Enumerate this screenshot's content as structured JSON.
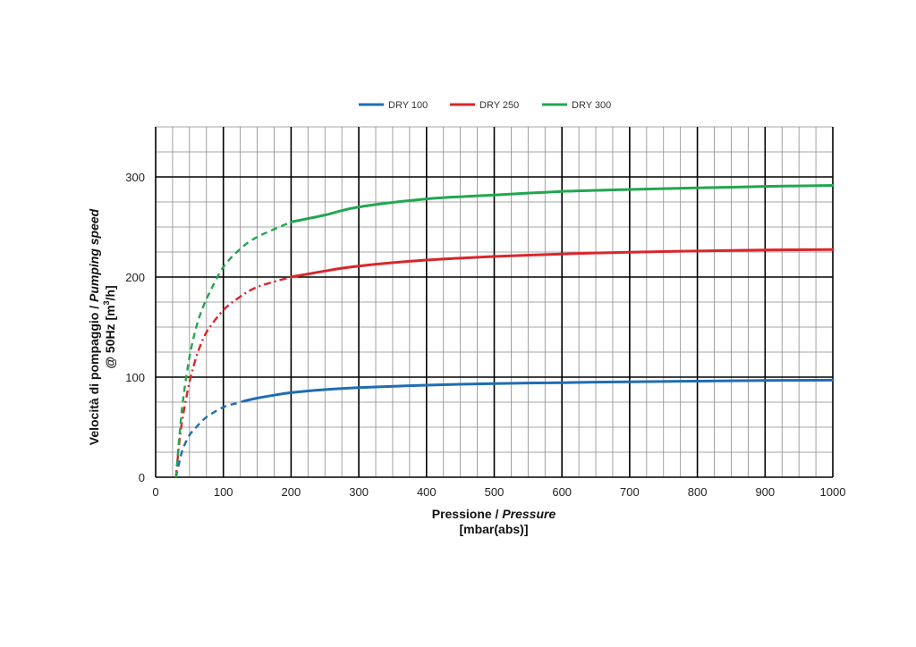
{
  "colors": {
    "dry100": "#1f6db3",
    "dry250": "#d9262b",
    "dry300": "#22a650",
    "grid_minor": "#8a8a8a",
    "grid_major": "#000000"
  },
  "chart_data": {
    "type": "line",
    "legend_placement": "top-center",
    "grid": true,
    "xlim": [
      0,
      1000
    ],
    "ylim": [
      0,
      350
    ],
    "x_major_ticks": [
      0,
      100,
      200,
      300,
      400,
      500,
      600,
      700,
      800,
      900,
      1000
    ],
    "y_major_ticks": [
      0,
      100,
      200,
      300
    ],
    "x_minor_step": 25,
    "y_minor_step": 25,
    "xlabel_main": "Pressione / ",
    "xlabel_italic": "Pressure",
    "xlabel_unit": "[mbar(abs)]",
    "ylabel_line1_main": "Velocità di pompaggio / ",
    "ylabel_line1_italic": "Pumping speed",
    "ylabel_line2_main": "@ 50Hz [m",
    "ylabel_line2_sup": "3",
    "ylabel_line2_end": "/h]",
    "series": [
      {
        "name": "DRY 100",
        "color_key": "dry100",
        "dashed": {
          "style": "dash",
          "points": [
            [
              30,
              0
            ],
            [
              35,
              15
            ],
            [
              40,
              28
            ],
            [
              50,
              42
            ],
            [
              60,
              50
            ],
            [
              75,
              60
            ],
            [
              100,
              70
            ],
            [
              120,
              74
            ],
            [
              130,
              76
            ]
          ]
        },
        "solid": [
          [
            130,
            76
          ],
          [
            150,
            79
          ],
          [
            175,
            82
          ],
          [
            200,
            84.5
          ],
          [
            250,
            87.5
          ],
          [
            300,
            89.5
          ],
          [
            400,
            92
          ],
          [
            500,
            93.5
          ],
          [
            600,
            94.5
          ],
          [
            700,
            95.3
          ],
          [
            800,
            96
          ],
          [
            900,
            96.6
          ],
          [
            1000,
            97
          ]
        ]
      },
      {
        "name": "DRY 250",
        "color_key": "dry250",
        "dashed": {
          "style": "dashdot",
          "points": [
            [
              30,
              0
            ],
            [
              35,
              35
            ],
            [
              40,
              60
            ],
            [
              50,
              95
            ],
            [
              60,
              120
            ],
            [
              70,
              138
            ],
            [
              80,
              150
            ],
            [
              100,
              167
            ],
            [
              120,
              178
            ],
            [
              150,
              190
            ],
            [
              200,
              200
            ]
          ]
        },
        "solid": [
          [
            200,
            200
          ],
          [
            250,
            206
          ],
          [
            300,
            211
          ],
          [
            400,
            217
          ],
          [
            500,
            220.5
          ],
          [
            600,
            223
          ],
          [
            700,
            224.8
          ],
          [
            800,
            226
          ],
          [
            900,
            227
          ],
          [
            1000,
            227.5
          ]
        ]
      },
      {
        "name": "DRY 300",
        "color_key": "dry300",
        "dashed": {
          "style": "dash",
          "points": [
            [
              30,
              0
            ],
            [
              35,
              40
            ],
            [
              40,
              75
            ],
            [
              50,
              120
            ],
            [
              60,
              150
            ],
            [
              70,
              170
            ],
            [
              80,
              185
            ],
            [
              100,
              210
            ],
            [
              125,
              228
            ],
            [
              150,
              240
            ],
            [
              200,
              255
            ]
          ]
        },
        "solid": [
          [
            200,
            255
          ],
          [
            250,
            262
          ],
          [
            300,
            270
          ],
          [
            400,
            278
          ],
          [
            500,
            282
          ],
          [
            600,
            285.5
          ],
          [
            700,
            287.5
          ],
          [
            800,
            289
          ],
          [
            900,
            290.5
          ],
          [
            1000,
            291.5
          ]
        ]
      }
    ]
  }
}
